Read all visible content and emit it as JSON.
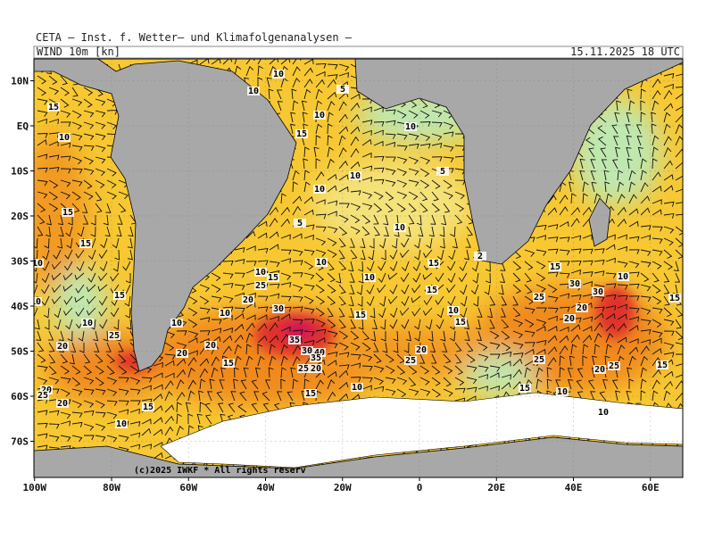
{
  "header": {
    "title": "CETA — Inst. f. Wetter— und Klimafolgenanalysen —",
    "parameter": "WIND 10m [kn]",
    "valid_time": "15.11.2025 18 UTC",
    "copyright": "(c)2025 IWKF * All rights reserv"
  },
  "map": {
    "lat_ticks": [
      {
        "value": 10,
        "label": "10N"
      },
      {
        "value": 0,
        "label": "EQ"
      },
      {
        "value": -10,
        "label": "10S"
      },
      {
        "value": -20,
        "label": "20S"
      },
      {
        "value": -30,
        "label": "30S"
      },
      {
        "value": -40,
        "label": "40S"
      },
      {
        "value": -50,
        "label": "50S"
      },
      {
        "value": -60,
        "label": "60S"
      },
      {
        "value": -70,
        "label": "70S"
      }
    ],
    "lon_ticks": [
      {
        "value": -100,
        "label": "100W"
      },
      {
        "value": -80,
        "label": "80W"
      },
      {
        "value": -60,
        "label": "60W"
      },
      {
        "value": -40,
        "label": "40W"
      },
      {
        "value": -20,
        "label": "20W"
      },
      {
        "value": 0,
        "label": "0"
      },
      {
        "value": 20,
        "label": "20E"
      },
      {
        "value": 40,
        "label": "40E"
      },
      {
        "value": 60,
        "label": "60E"
      }
    ],
    "contour_labels": [
      "10",
      "10",
      "5",
      "15",
      "10",
      "15",
      "10",
      "10",
      "10",
      "5",
      "15",
      "5",
      "10",
      "10",
      "15",
      "2",
      "10",
      "15",
      "15",
      "10",
      "10",
      "10",
      "15",
      "25",
      "15",
      "20",
      "30",
      "10",
      "10",
      "15",
      "10",
      "15",
      "25",
      "20",
      "35",
      "30",
      "40",
      "35",
      "25",
      "20",
      "20",
      "25",
      "20",
      "25",
      "15",
      "30",
      "15",
      "10",
      "20",
      "20",
      "15",
      "25",
      "30",
      "15",
      "25",
      "20",
      "20",
      "10",
      "20",
      "25",
      "15",
      "15",
      "10",
      "10",
      "10",
      "15",
      "20",
      "10",
      "10"
    ]
  }
}
